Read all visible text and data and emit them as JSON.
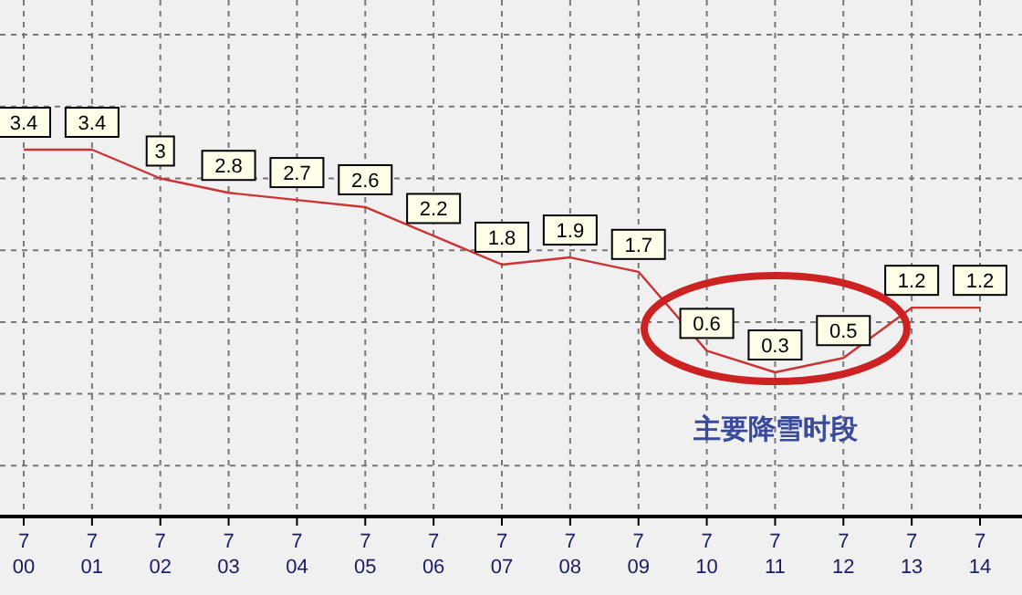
{
  "chart_data": {
    "type": "line",
    "categories": [
      "7\n00",
      "7\n01",
      "7\n02",
      "7\n03",
      "7\n04",
      "7\n05",
      "7\n06",
      "7\n07",
      "7\n08",
      "7\n09",
      "7\n10",
      "7\n11",
      "7\n12",
      "7\n13",
      "7\n14"
    ],
    "values": [
      3.4,
      3.4,
      3,
      2.8,
      2.7,
      2.6,
      2.2,
      1.8,
      1.9,
      1.7,
      0.6,
      0.3,
      0.5,
      1.2,
      1.2
    ],
    "color": "#cc3333",
    "data_labels": true,
    "grid": true,
    "tick_labels": "x",
    "annotations": [
      "主要降雪时段"
    ]
  }
}
